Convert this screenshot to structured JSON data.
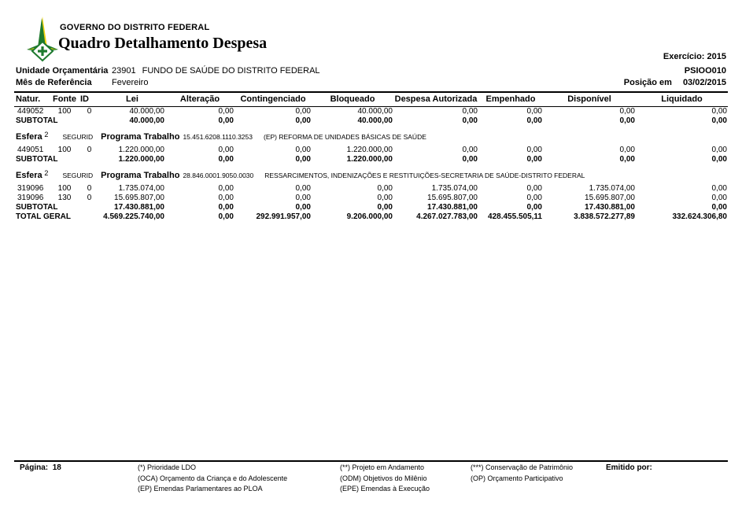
{
  "brand": {
    "logo_green": "#1e7a2e",
    "logo_yellow": "#f2d410",
    "logo_name": "gdf-coat-of-arms"
  },
  "header": {
    "org": "GOVERNO DO DISTRITO FEDERAL",
    "title": "Quadro Detalhamento Despesa",
    "exercicio": "Exercício: 2015",
    "unidade_label": "Unidade Orçamentária",
    "unidade_code": "23901",
    "unidade_name": "FUNDO DE SAÚDE DO DISTRITO FEDERAL",
    "report_code": "PSIOO010",
    "mes_label": "Mês de Referência",
    "mes_value": "Fevereiro",
    "posicao_label": "Posição em",
    "posicao_value": "03/02/2015"
  },
  "table": {
    "columns": [
      "Natur.",
      "Fonte",
      "ID",
      "Lei",
      "Alteração",
      "Contingenciado",
      "Bloqueado",
      "Despesa Autorizada",
      "Empenhado",
      "Disponível",
      "Liquidado"
    ],
    "rows": [
      {
        "type": "data",
        "natur": "449052",
        "fonte": "100",
        "id": "0",
        "values": [
          "40.000,00",
          "0,00",
          "0,00",
          "40.000,00",
          "0,00",
          "0,00",
          "0,00",
          "0,00"
        ]
      },
      {
        "type": "subtotal",
        "label": "SUBTOTAL",
        "values": [
          "40.000,00",
          "0,00",
          "0,00",
          "40.000,00",
          "0,00",
          "0,00",
          "0,00",
          "0,00"
        ]
      },
      {
        "type": "esfera",
        "esfera_label": "Esfera",
        "esfera_value": "2",
        "esfera_kind": "SEGURID",
        "programa_label": "Programa Trabalho",
        "programa_code": "15.451.6208.1110.3253",
        "descricao": "(EP)  REFORMA DE UNIDADES BÁSICAS DE SAÚDE"
      },
      {
        "type": "data",
        "natur": "449051",
        "fonte": "100",
        "id": "0",
        "values": [
          "1.220.000,00",
          "0,00",
          "0,00",
          "1.220.000,00",
          "0,00",
          "0,00",
          "0,00",
          "0,00"
        ]
      },
      {
        "type": "subtotal",
        "label": "SUBTOTAL",
        "values": [
          "1.220.000,00",
          "0,00",
          "0,00",
          "1.220.000,00",
          "0,00",
          "0,00",
          "0,00",
          "0,00"
        ]
      },
      {
        "type": "esfera",
        "esfera_label": "Esfera",
        "esfera_value": "2",
        "esfera_kind": "SEGURID",
        "programa_label": "Programa Trabalho",
        "programa_code": "28.846.0001.9050.0030",
        "descricao": "RESSARCIMENTOS, INDENIZAÇÕES E RESTITUIÇÕES-SECRETARIA DE SAÚDE-DISTRITO FEDERAL"
      },
      {
        "type": "data",
        "natur": "319096",
        "fonte": "100",
        "id": "0",
        "values": [
          "1.735.074,00",
          "0,00",
          "0,00",
          "0,00",
          "1.735.074,00",
          "0,00",
          "1.735.074,00",
          "0,00"
        ]
      },
      {
        "type": "data",
        "natur": "319096",
        "fonte": "130",
        "id": "0",
        "values": [
          "15.695.807,00",
          "0,00",
          "0,00",
          "0,00",
          "15.695.807,00",
          "0,00",
          "15.695.807,00",
          "0,00"
        ]
      },
      {
        "type": "subtotal",
        "label": "SUBTOTAL",
        "values": [
          "17.430.881,00",
          "0,00",
          "0,00",
          "0,00",
          "17.430.881,00",
          "0,00",
          "17.430.881,00",
          "0,00"
        ]
      },
      {
        "type": "total",
        "label": "TOTAL GERAL",
        "values": [
          "4.569.225.740,00",
          "0,00",
          "292.991.957,00",
          "9.206.000,00",
          "4.267.027.783,00",
          "428.455.505,11",
          "3.838.572.277,89",
          "332.624.306,80"
        ]
      }
    ]
  },
  "footer": {
    "pagina_label": "Página:",
    "pagina_value": "18",
    "legend_col1": [
      "(*)  Prioridade LDO",
      "(OCA)  Orçamento da Criança e do Adolescente",
      "(EP)  Emendas Parlamentares ao PLOA"
    ],
    "legend_col2": [
      "(**)  Projeto em Andamento",
      "(ODM) Objetivos do Milênio",
      "(EPE) Emendas à Execução"
    ],
    "legend_col3": [
      "(***)  Conservação de Patrimônio",
      "(OP) Orçamento Participativo"
    ],
    "emitido_label": "Emitido por:"
  }
}
